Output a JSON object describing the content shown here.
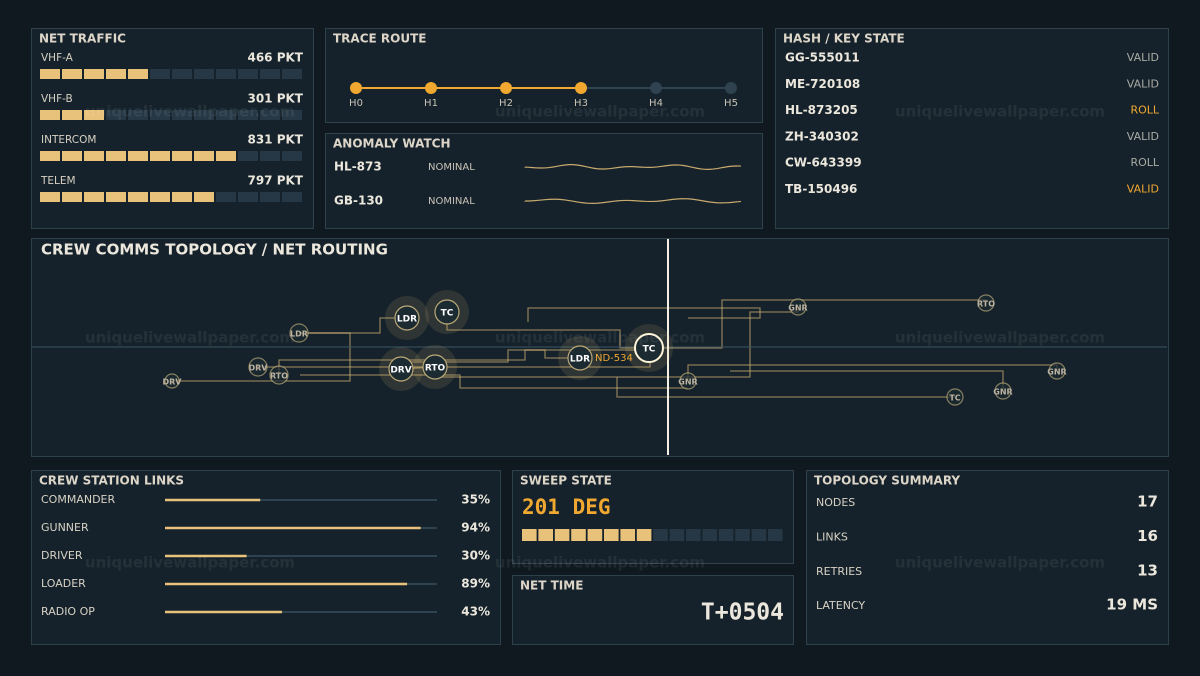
{
  "watermark": "uniquelivewallpaper.com",
  "net_traffic": {
    "title": "NET TRAFFIC",
    "segments": 12,
    "rows": [
      {
        "label": "VHF-A",
        "value": "466 PKT",
        "filled": 5
      },
      {
        "label": "VHF-B",
        "value": "301 PKT",
        "filled": 3
      },
      {
        "label": "INTERCOM",
        "value": "831 PKT",
        "filled": 9
      },
      {
        "label": "TELEM",
        "value": "797 PKT",
        "filled": 8
      }
    ]
  },
  "trace_route": {
    "title": "TRACE ROUTE",
    "hops": [
      {
        "label": "H0",
        "active": true
      },
      {
        "label": "H1",
        "active": true
      },
      {
        "label": "H2",
        "active": true
      },
      {
        "label": "H3",
        "active": true
      },
      {
        "label": "H4",
        "active": false
      },
      {
        "label": "H5",
        "active": false
      }
    ]
  },
  "anomaly_watch": {
    "title": "ANOMALY WATCH",
    "rows": [
      {
        "id": "HL-873",
        "status": "NOMINAL"
      },
      {
        "id": "GB-130",
        "status": "NOMINAL"
      }
    ]
  },
  "hash_key_state": {
    "title": "HASH / KEY STATE",
    "rows": [
      {
        "key": "GG-555011",
        "state": "VALID",
        "color": "#a9aaa3"
      },
      {
        "key": "ME-720108",
        "state": "VALID",
        "color": "#a9aaa3"
      },
      {
        "key": "HL-873205",
        "state": "ROLL",
        "color": "#f0a830"
      },
      {
        "key": "ZH-340302",
        "state": "VALID",
        "color": "#a9aaa3"
      },
      {
        "key": "CW-643399",
        "state": "ROLL",
        "color": "#a9aaa3"
      },
      {
        "key": "TB-150496",
        "state": "VALID",
        "color": "#f0a830"
      }
    ]
  },
  "topology": {
    "title": "CREW COMMS TOPOLOGY / NET ROUTING",
    "focus_label": "ND-534",
    "nodes": [
      "DRV",
      "DRV",
      "RTO",
      "LDR",
      "LDR",
      "TC",
      "DRV",
      "RTO",
      "LDR",
      "TC",
      "GNR",
      "RTO",
      "GNR",
      "GNR",
      "TC",
      "GNR"
    ]
  },
  "crew_station_links": {
    "title": "CREW STATION LINKS",
    "rows": [
      {
        "label": "COMMANDER",
        "value": 35,
        "value_label": "35%"
      },
      {
        "label": "GUNNER",
        "value": 94,
        "value_label": "94%"
      },
      {
        "label": "DRIVER",
        "value": 30,
        "value_label": "30%"
      },
      {
        "label": "LOADER",
        "value": 89,
        "value_label": "89%"
      },
      {
        "label": "RADIO OP",
        "value": 43,
        "value_label": "43%"
      }
    ]
  },
  "sweep_state": {
    "title": "SWEEP STATE",
    "value": "201 DEG",
    "segments": 16,
    "filled": 8
  },
  "net_time": {
    "title": "NET TIME",
    "value": "T+0504"
  },
  "topology_summary": {
    "title": "TOPOLOGY SUMMARY",
    "rows": [
      {
        "label": "NODES",
        "value": "17"
      },
      {
        "label": "LINKS",
        "value": "16"
      },
      {
        "label": "RETRIES",
        "value": "13"
      },
      {
        "label": "LATENCY",
        "value": "19 MS"
      }
    ]
  }
}
